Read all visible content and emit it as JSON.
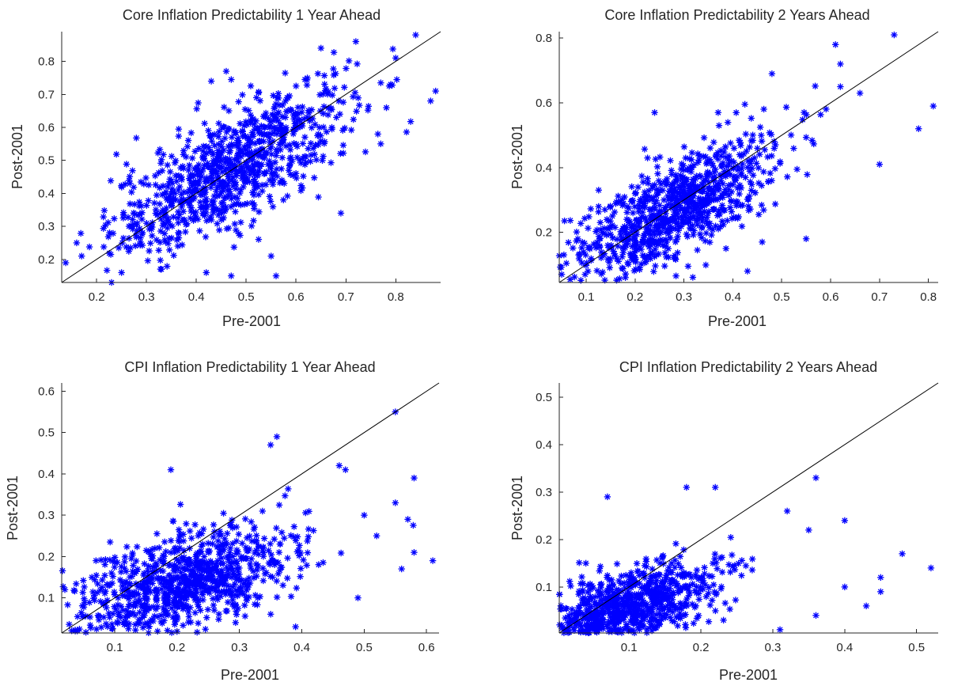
{
  "colors": {
    "marker": "#0000ff",
    "axis": "#262626",
    "reference_line": "#000000"
  },
  "chart_data": [
    {
      "type": "scatter",
      "title": "Core Inflation Predictability 1 Year Ahead",
      "xlabel": "Pre-2001",
      "ylabel": "Post-2001",
      "xlim": [
        0.13,
        0.89
      ],
      "ylim": [
        0.13,
        0.89
      ],
      "xticks": [
        "0.2",
        "0.3",
        "0.4",
        "0.5",
        "0.6",
        "0.7",
        "0.8"
      ],
      "yticks": [
        "0.2",
        "0.3",
        "0.4",
        "0.5",
        "0.6",
        "0.7",
        "0.8"
      ],
      "grid": false,
      "marker": "asterisk",
      "reference_line": "y = x",
      "cloud": {
        "n": 900,
        "x_mean": 0.47,
        "x_sd": 0.12,
        "slope": 0.82,
        "intercept": 0.09,
        "resid_sd": 0.085
      },
      "points": [
        [
          0.16,
          0.25
        ],
        [
          0.17,
          0.21
        ],
        [
          0.23,
          0.13
        ],
        [
          0.84,
          0.88
        ],
        [
          0.88,
          0.71
        ],
        [
          0.87,
          0.68
        ],
        [
          0.56,
          0.15
        ],
        [
          0.47,
          0.15
        ],
        [
          0.42,
          0.16
        ],
        [
          0.43,
          0.74
        ],
        [
          0.46,
          0.77
        ],
        [
          0.72,
          0.86
        ],
        [
          0.79,
          0.73
        ],
        [
          0.65,
          0.84
        ],
        [
          0.77,
          0.55
        ],
        [
          0.69,
          0.34
        ],
        [
          0.8,
          0.81
        ],
        [
          0.33,
          0.17
        ],
        [
          0.25,
          0.16
        ],
        [
          0.55,
          0.21
        ]
      ]
    },
    {
      "type": "scatter",
      "title": "Core Inflation Predictability 2 Years Ahead",
      "xlabel": "Pre-2001",
      "ylabel": "Post-2001",
      "xlim": [
        0.045,
        0.82
      ],
      "ylim": [
        0.045,
        0.82
      ],
      "xticks": [
        "0.1",
        "0.2",
        "0.3",
        "0.4",
        "0.5",
        "0.6",
        "0.7",
        "0.8"
      ],
      "yticks": [
        "0.2",
        "0.4",
        "0.6",
        "0.8"
      ],
      "grid": false,
      "marker": "asterisk",
      "reference_line": "y = x",
      "cloud": {
        "n": 900,
        "x_mean": 0.27,
        "x_sd": 0.11,
        "slope": 0.78,
        "intercept": 0.05,
        "resid_sd": 0.075
      },
      "points": [
        [
          0.73,
          0.81
        ],
        [
          0.81,
          0.59
        ],
        [
          0.78,
          0.52
        ],
        [
          0.7,
          0.41
        ],
        [
          0.61,
          0.78
        ],
        [
          0.62,
          0.72
        ],
        [
          0.55,
          0.18
        ],
        [
          0.43,
          0.08
        ],
        [
          0.46,
          0.17
        ],
        [
          0.05,
          0.07
        ],
        [
          0.24,
          0.57
        ],
        [
          0.48,
          0.69
        ],
        [
          0.66,
          0.63
        ],
        [
          0.62,
          0.65
        ],
        [
          0.37,
          0.57
        ]
      ]
    },
    {
      "type": "scatter",
      "title": "CPI Inflation Predictability 1 Year Ahead",
      "xlabel": "Pre-2001",
      "ylabel": "Post-2001",
      "xlim": [
        0.015,
        0.62
      ],
      "ylim": [
        0.015,
        0.62
      ],
      "xticks": [
        "0.1",
        "0.2",
        "0.3",
        "0.4",
        "0.5",
        "0.6"
      ],
      "yticks": [
        "0.1",
        "0.2",
        "0.3",
        "0.4",
        "0.5",
        "0.6"
      ],
      "grid": false,
      "marker": "asterisk",
      "reference_line": "y = x",
      "cloud": {
        "n": 900,
        "x_mean": 0.21,
        "x_sd": 0.09,
        "slope": 0.45,
        "intercept": 0.04,
        "resid_sd": 0.06
      },
      "points": [
        [
          0.55,
          0.55
        ],
        [
          0.36,
          0.49
        ],
        [
          0.35,
          0.47
        ],
        [
          0.61,
          0.19
        ],
        [
          0.58,
          0.39
        ],
        [
          0.57,
          0.29
        ],
        [
          0.55,
          0.33
        ],
        [
          0.52,
          0.25
        ],
        [
          0.5,
          0.3
        ],
        [
          0.49,
          0.1
        ],
        [
          0.46,
          0.42
        ],
        [
          0.47,
          0.41
        ],
        [
          0.39,
          0.03
        ],
        [
          0.19,
          0.41
        ],
        [
          0.04,
          0.02
        ],
        [
          0.07,
          0.19
        ],
        [
          0.58,
          0.21
        ],
        [
          0.56,
          0.17
        ]
      ]
    },
    {
      "type": "scatter",
      "title": "CPI Inflation Predictability 2 Years Ahead",
      "xlabel": "Pre-2001",
      "ylabel": "Post-2001",
      "xlim": [
        0.003,
        0.53
      ],
      "ylim": [
        0.003,
        0.53
      ],
      "xticks": [
        "0.1",
        "0.2",
        "0.3",
        "0.4",
        "0.5"
      ],
      "yticks": [
        "0.1",
        "0.2",
        "0.3",
        "0.4",
        "0.5"
      ],
      "grid": false,
      "marker": "asterisk",
      "reference_line": "y = x",
      "cloud": {
        "n": 900,
        "x_mean": 0.09,
        "x_sd": 0.065,
        "slope": 0.45,
        "intercept": 0.01,
        "resid_sd": 0.04
      },
      "points": [
        [
          0.36,
          0.33
        ],
        [
          0.52,
          0.14
        ],
        [
          0.48,
          0.17
        ],
        [
          0.45,
          0.12
        ],
        [
          0.43,
          0.06
        ],
        [
          0.4,
          0.24
        ],
        [
          0.4,
          0.1
        ],
        [
          0.22,
          0.31
        ],
        [
          0.18,
          0.31
        ],
        [
          0.07,
          0.29
        ],
        [
          0.36,
          0.04
        ],
        [
          0.31,
          0.01
        ],
        [
          0.35,
          0.22
        ],
        [
          0.32,
          0.26
        ],
        [
          0.45,
          0.09
        ],
        [
          0.04,
          0.15
        ]
      ]
    }
  ]
}
